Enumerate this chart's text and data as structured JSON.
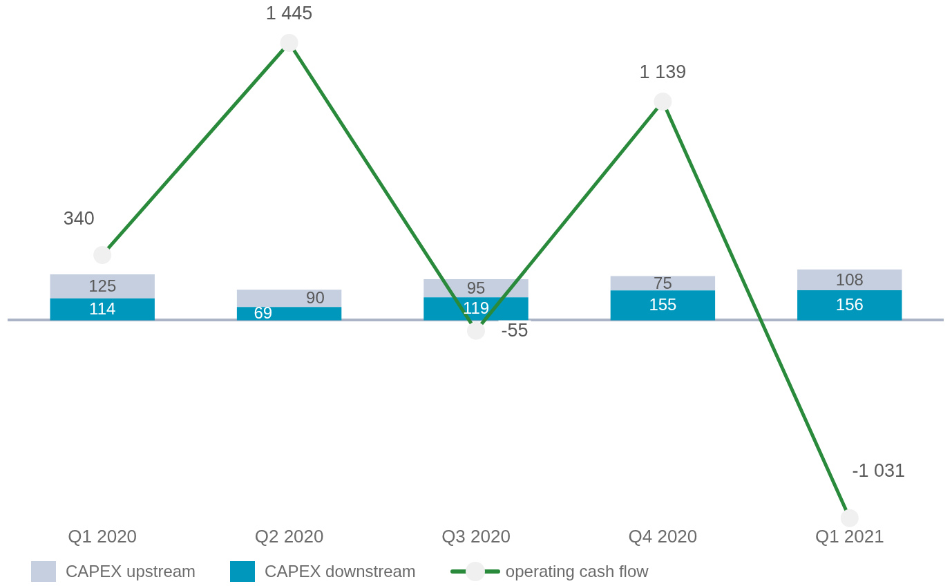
{
  "chart_data": {
    "type": "bar",
    "categories": [
      "Q1 2020",
      "Q2 2020",
      "Q3 2020",
      "Q4 2020",
      "Q1 2021"
    ],
    "stacked": true,
    "tick_labels": "x",
    "legend": "bottom",
    "marker": "circle",
    "series": [
      {
        "name": "CAPEX downstream",
        "color": "#0097bd",
        "values": [
          114,
          69,
          119,
          155,
          156
        ],
        "value_labels": [
          "114",
          "69",
          "119",
          "155",
          "156"
        ]
      },
      {
        "name": "CAPEX upstream",
        "color": "#c5cfe0",
        "values": [
          125,
          90,
          95,
          75,
          108
        ],
        "value_labels": [
          "125",
          "90",
          "95",
          "75",
          "108"
        ]
      },
      {
        "name": "operating cash flow",
        "type": "line",
        "color": "#2a8a3c",
        "values": [
          340,
          1445,
          -55,
          1139,
          -1031
        ],
        "value_labels": [
          "340",
          "1 445",
          "-55",
          "1 139",
          "-1 031"
        ]
      }
    ]
  }
}
